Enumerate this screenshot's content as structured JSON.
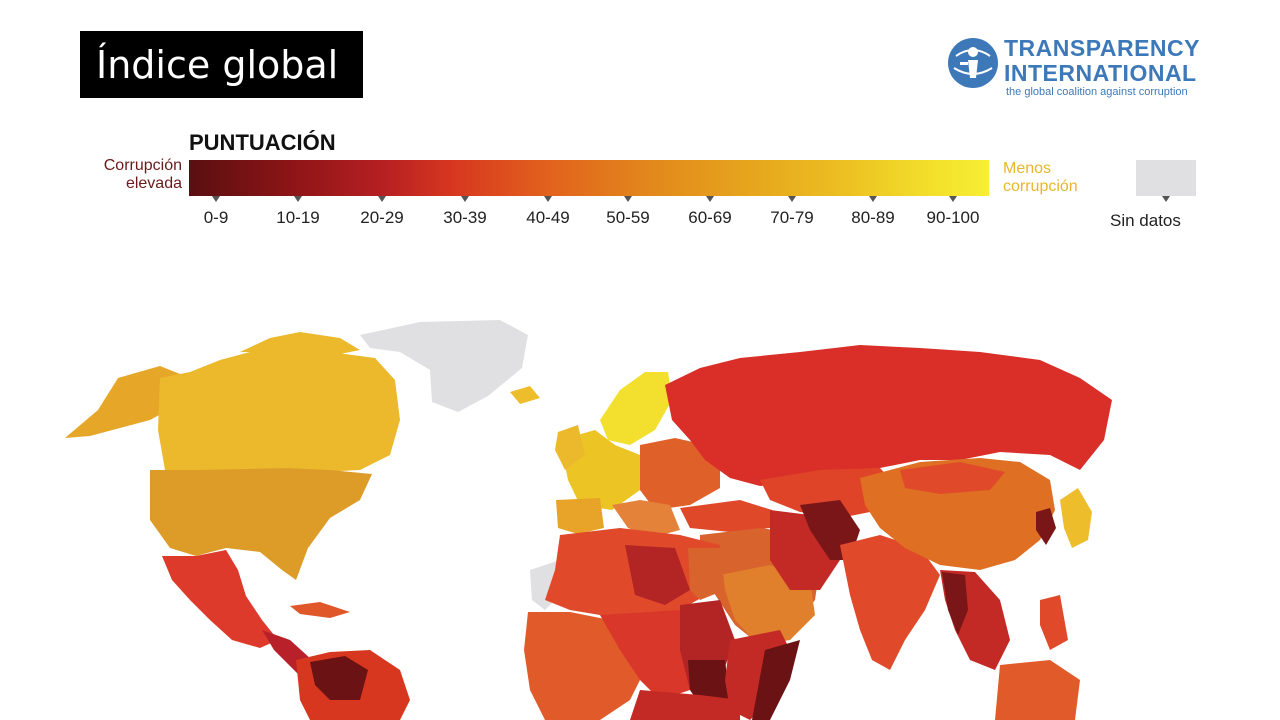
{
  "header": {
    "title": "Índice global"
  },
  "logo": {
    "line1": "TRANSPARENCY",
    "line2": "INTERNATIONAL",
    "tagline": "the global coalition against corruption"
  },
  "legend": {
    "title": "PUNTUACIÓN",
    "left_label_1": "Corrupción",
    "left_label_2": "elevada",
    "right_label_1": "Menos",
    "right_label_2": "corrupción",
    "ranges": [
      "0-9",
      "10-19",
      "20-29",
      "30-39",
      "40-49",
      "50-59",
      "60-69",
      "70-79",
      "80-89",
      "90-100"
    ],
    "no_data_label": "Sin datos",
    "colors": {
      "dark_red": "#5a0f11",
      "red": "#b51f22",
      "orange_red": "#d7371f",
      "orange": "#e2891c",
      "yellow": "#f7ee35",
      "no_data": "#e0e0e2"
    }
  }
}
